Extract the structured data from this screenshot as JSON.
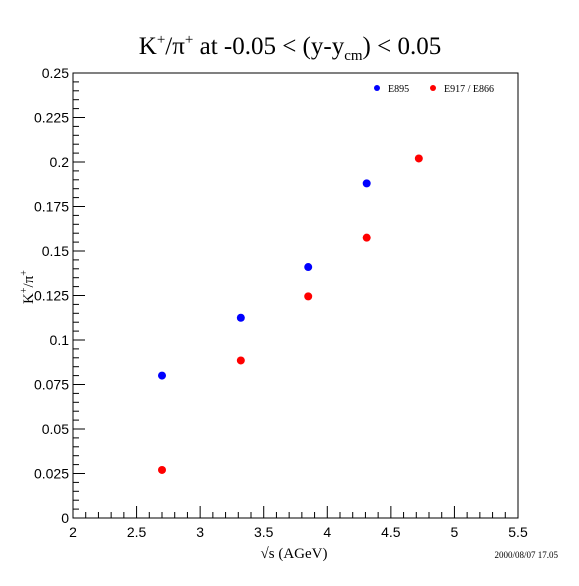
{
  "chart_data": {
    "type": "scatter",
    "title_parts": {
      "k": "K",
      "plus1": "+",
      "slash_pi": "/π",
      "plus2": "+",
      "at": " at -0.05 < (y-y",
      "sub": "cm",
      "end": ") < 0.05"
    },
    "xlabel": "√s  (AGeV)",
    "ylabel_parts": {
      "k": "K",
      "plus1": "+",
      "slash_pi": "/π",
      "plus2": "+"
    },
    "xlim": [
      2,
      5.5
    ],
    "ylim": [
      0,
      0.25
    ],
    "x_major_ticks": [
      2,
      2.5,
      3,
      3.5,
      4,
      4.5,
      5,
      5.5
    ],
    "x_tick_labels": [
      "2",
      "2.5",
      "3",
      "3.5",
      "4",
      "4.5",
      "5",
      "5.5"
    ],
    "y_major_ticks": [
      0,
      0.025,
      0.05,
      0.075,
      0.1,
      0.125,
      0.15,
      0.175,
      0.2,
      0.225,
      0.25
    ],
    "y_tick_labels": [
      "0",
      "0.025",
      "0.05",
      "0.075",
      "0.1",
      "0.125",
      "0.15",
      "0.175",
      "0.2",
      "0.225",
      "0.25"
    ],
    "grid": false,
    "legend_position": "top-right",
    "series": [
      {
        "name": "E895",
        "color": "#0000ff",
        "points": [
          {
            "x": 2.7,
            "y": 0.08
          },
          {
            "x": 3.32,
            "y": 0.1125
          },
          {
            "x": 3.85,
            "y": 0.141
          },
          {
            "x": 4.31,
            "y": 0.188
          }
        ]
      },
      {
        "name": "E917 / E866",
        "color": "#ff0000",
        "points": [
          {
            "x": 2.7,
            "y": 0.027
          },
          {
            "x": 3.32,
            "y": 0.0885
          },
          {
            "x": 3.85,
            "y": 0.1245
          },
          {
            "x": 4.31,
            "y": 0.1575
          },
          {
            "x": 4.72,
            "y": 0.202
          }
        ]
      }
    ]
  },
  "timestamp": "2000/08/07   17.05"
}
